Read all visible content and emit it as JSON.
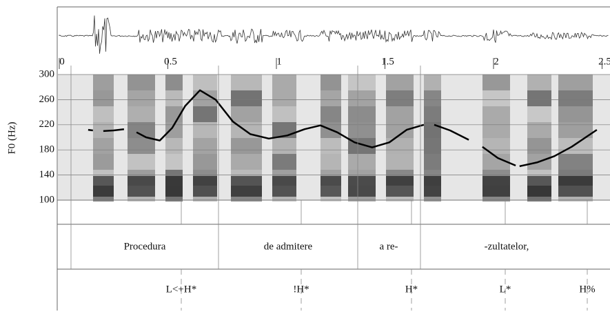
{
  "chart_data": {
    "type": "line",
    "ylabel": "F0 (Hz)",
    "x": [
      0.133,
      0.155,
      0.18,
      0.203,
      0.25,
      0.298,
      0.33,
      0.356,
      0.4,
      0.463,
      0.52,
      0.58,
      0.648,
      0.72,
      0.8,
      0.88,
      0.965,
      1.05,
      1.13,
      1.203,
      1.28,
      1.36,
      1.441,
      1.52,
      1.6,
      1.679,
      1.7,
      1.727,
      1.8,
      1.886,
      1.92,
      1.949,
      2.02,
      2.102,
      2.11,
      2.12,
      2.2,
      2.28,
      2.36,
      2.476
    ],
    "values": [
      212,
      211,
      null,
      210,
      211,
      213,
      null,
      208,
      200,
      195,
      215,
      250,
      275,
      260,
      225,
      205,
      198,
      203,
      213,
      219,
      208,
      192,
      184,
      192,
      212,
      220,
      null,
      220,
      211,
      196,
      null,
      185,
      167,
      155,
      null,
      154,
      160,
      170,
      185,
      212
    ],
    "color": "#000000",
    "xlim": [
      0,
      2.54
    ],
    "xticks": [
      0,
      0.5,
      1,
      1.5,
      2,
      2.5
    ],
    "ylim": [
      100,
      300
    ],
    "yticks": [
      100,
      140,
      180,
      220,
      260,
      300
    ],
    "grid": true
  },
  "tiers": {
    "words": [
      "Procedura",
      "de admitere",
      "a re-",
      "-zultatelor,"
    ],
    "tones": [
      "L<+H*",
      "!H*",
      "H*",
      "L*",
      "H%"
    ]
  }
}
